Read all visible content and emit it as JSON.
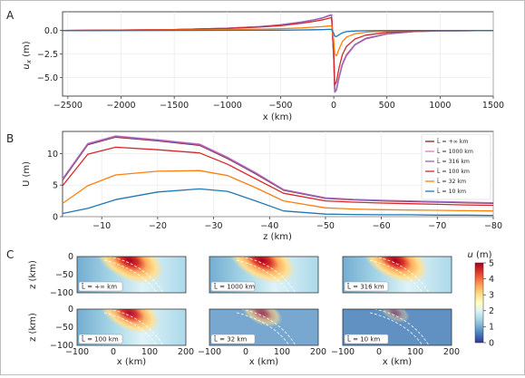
{
  "panels": {
    "A": {
      "letter": "A",
      "ylabel": "u_x (m)",
      "ylabel_main": "u",
      "ylabel_sub": "x",
      "ylabel_unit": " (m)",
      "xlabel": "x (km)",
      "xlim": [
        -2550,
        1500
      ],
      "ylim": [
        -7.0,
        2.0
      ],
      "xticks": [
        -2500,
        -2000,
        -1500,
        -1000,
        -500,
        0,
        500,
        1000,
        1500
      ],
      "xtick_labels": [
        "−2500",
        "−2000",
        "−1500",
        "−1000",
        "−500",
        "0",
        "500",
        "1000",
        "1500"
      ],
      "yticks": [
        0.0,
        -2.5,
        -5.0
      ],
      "ytick_labels": [
        "0.0",
        "−2.5",
        "−5.0"
      ]
    },
    "B": {
      "letter": "B",
      "ylabel": "U (m)",
      "xlabel": "z (km)",
      "xlim": [
        -3,
        -80
      ],
      "ylim": [
        0,
        13.5
      ],
      "xticks": [
        -10,
        -20,
        -30,
        -40,
        -50,
        -60,
        -70,
        -80
      ],
      "xtick_labels": [
        "−10",
        "−20",
        "−30",
        "−40",
        "−50",
        "−60",
        "−70",
        "−80"
      ],
      "yticks": [
        0,
        5,
        10
      ],
      "ytick_labels": [
        "0",
        "5",
        "10"
      ]
    },
    "C": {
      "letter": "C",
      "ylabel": "z (km)",
      "xlabel": "x (km)",
      "xtick_labels": [
        "−100",
        "0",
        "100",
        "200"
      ],
      "ytick_labels": [
        "0",
        "−50",
        "−100"
      ],
      "colorbar": {
        "label": "u (m)",
        "label_main": "u",
        "label_unit": " (m)",
        "range": [
          0,
          5
        ],
        "ticks": [
          "0",
          "1",
          "2",
          "3",
          "4",
          "5"
        ],
        "colormap": "RdYlBu_r"
      },
      "maps": [
        {
          "label": "L̃ = +∞ km",
          "intensity": 1.0
        },
        {
          "label": "L̃ = 1000 km",
          "intensity": 0.98
        },
        {
          "label": "L̃ = 316 km",
          "intensity": 0.95
        },
        {
          "label": "L̃ = 100 km",
          "intensity": 0.85
        },
        {
          "label": "L̃ = 32 km",
          "intensity": 0.5
        },
        {
          "label": "L̃ = 10 km",
          "intensity": 0.28
        }
      ]
    }
  },
  "legend_entries": [
    "L̃ = +∞ km",
    "L̃ = 1000 km",
    "L̃ = 316 km",
    "L̃ = 100 km",
    "L̃ = 32 km",
    "L̃ = 10 km"
  ],
  "chart_data": [
    {
      "type": "line",
      "panel": "A",
      "xlabel": "x (km)",
      "ylabel": "u_x (m)",
      "xlim": [
        -2550,
        1500
      ],
      "ylim": [
        -7.0,
        2.0
      ],
      "x": [
        -2550,
        -2000,
        -1500,
        -1000,
        -700,
        -500,
        -300,
        -200,
        -100,
        -50,
        -20,
        0,
        10,
        25,
        50,
        80,
        120,
        200,
        300,
        500,
        750,
        1000,
        1500
      ],
      "series": [
        {
          "name": "L̃ = +∞ km",
          "color": "#8c1f1f",
          "values": [
            0.0,
            0.05,
            0.1,
            0.25,
            0.4,
            0.6,
            0.9,
            1.1,
            1.35,
            1.55,
            1.65,
            -3.0,
            -6.5,
            -6.3,
            -5.0,
            -3.6,
            -2.6,
            -1.5,
            -0.85,
            -0.35,
            -0.12,
            -0.04,
            0.0
          ]
        },
        {
          "name": "L̃ = 1000 km",
          "color": "#e377c2",
          "values": [
            0.0,
            0.05,
            0.1,
            0.25,
            0.42,
            0.62,
            0.92,
            1.12,
            1.38,
            1.6,
            1.7,
            -3.0,
            -6.6,
            -6.4,
            -5.1,
            -3.7,
            -2.7,
            -1.55,
            -0.9,
            -0.38,
            -0.13,
            -0.04,
            0.0
          ]
        },
        {
          "name": "L̃ = 316 km",
          "color": "#9467bd",
          "values": [
            0.0,
            0.05,
            0.1,
            0.25,
            0.41,
            0.61,
            0.91,
            1.11,
            1.36,
            1.57,
            1.67,
            -3.0,
            -6.55,
            -6.35,
            -5.05,
            -3.65,
            -2.65,
            -1.52,
            -0.87,
            -0.36,
            -0.12,
            -0.04,
            0.0
          ]
        },
        {
          "name": "L̃ = 100 km",
          "color": "#d62728",
          "values": [
            0.0,
            0.04,
            0.09,
            0.22,
            0.36,
            0.52,
            0.78,
            0.95,
            1.15,
            1.3,
            1.38,
            -2.5,
            -5.8,
            -5.5,
            -4.0,
            -2.6,
            -1.7,
            -0.9,
            -0.5,
            -0.2,
            -0.07,
            -0.02,
            0.0
          ]
        },
        {
          "name": "L̃ = 32 km",
          "color": "#ff7f0e",
          "values": [
            0.0,
            0.02,
            0.05,
            0.1,
            0.15,
            0.2,
            0.28,
            0.35,
            0.42,
            0.48,
            0.5,
            -1.0,
            -2.5,
            -2.7,
            -2.0,
            -1.2,
            -0.7,
            -0.35,
            -0.18,
            -0.06,
            -0.02,
            0.0,
            0.0
          ]
        },
        {
          "name": "L̃ = 10 km",
          "color": "#1f77b4",
          "values": [
            0.0,
            0.0,
            0.01,
            0.02,
            0.03,
            0.04,
            0.06,
            0.08,
            0.1,
            0.12,
            0.12,
            -0.3,
            -0.6,
            -0.65,
            -0.45,
            -0.25,
            -0.12,
            -0.05,
            -0.02,
            0.0,
            0.0,
            0.0,
            0.0
          ]
        }
      ]
    },
    {
      "type": "line",
      "panel": "B",
      "xlabel": "z (km)",
      "ylabel": "U (m)",
      "xlim": [
        -3,
        -80
      ],
      "ylim": [
        0,
        13.5
      ],
      "legend": "right",
      "x": [
        -3,
        -7.5,
        -12.5,
        -20,
        -27.5,
        -32.5,
        -37.5,
        -42.5,
        -50,
        -55,
        -60,
        -65,
        -70,
        -75,
        -80
      ],
      "series": [
        {
          "name": "L̃ = +∞ km",
          "color": "#8c1f1f",
          "values": [
            5.8,
            11.4,
            12.6,
            12.0,
            11.3,
            9.2,
            6.8,
            4.2,
            2.9,
            2.65,
            2.5,
            2.4,
            2.3,
            2.2,
            2.1
          ]
        },
        {
          "name": "L̃ = 1000 km",
          "color": "#e377c2",
          "values": [
            6.0,
            11.6,
            12.8,
            12.2,
            11.5,
            9.4,
            7.0,
            4.3,
            3.0,
            2.75,
            2.6,
            2.5,
            2.4,
            2.3,
            2.2
          ]
        },
        {
          "name": "L̃ = 316 km",
          "color": "#9467bd",
          "values": [
            5.9,
            11.5,
            12.7,
            12.1,
            11.4,
            9.3,
            6.9,
            4.25,
            2.95,
            2.7,
            2.55,
            2.45,
            2.35,
            2.25,
            2.15
          ]
        },
        {
          "name": "L̃ = 100 km",
          "color": "#d62728",
          "values": [
            4.9,
            9.9,
            11.0,
            10.6,
            10.1,
            8.3,
            6.0,
            3.7,
            2.5,
            2.3,
            2.15,
            2.05,
            1.95,
            1.85,
            1.8
          ]
        },
        {
          "name": "L̃ = 32 km",
          "color": "#ff7f0e",
          "values": [
            2.1,
            4.9,
            6.6,
            7.2,
            7.3,
            6.5,
            4.6,
            2.5,
            1.4,
            1.2,
            1.1,
            1.05,
            1.0,
            0.95,
            0.9
          ]
        },
        {
          "name": "L̃ = 10 km",
          "color": "#1f77b4",
          "values": [
            0.5,
            1.3,
            2.7,
            3.9,
            4.4,
            4.0,
            2.5,
            0.9,
            0.4,
            0.35,
            0.3,
            0.3,
            0.25,
            0.25,
            0.2
          ]
        }
      ]
    },
    {
      "type": "heatmap",
      "panel": "C",
      "xlim": [
        -100,
        200
      ],
      "ylim": [
        -100,
        0
      ],
      "colorbar_range": [
        0,
        5
      ]
    }
  ]
}
